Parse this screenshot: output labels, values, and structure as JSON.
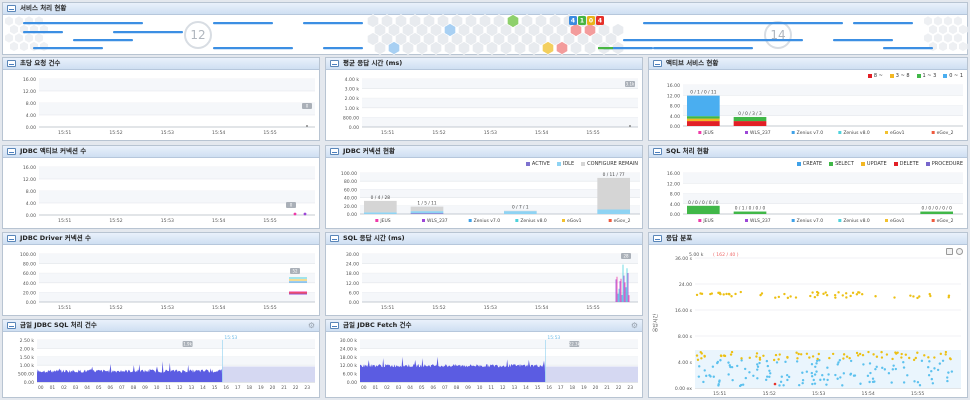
{
  "service": {
    "title": "서비스 처리 현황",
    "count_left": "12",
    "count_right": "14",
    "badges": [
      {
        "label": "4",
        "color": "#3b8be0"
      },
      {
        "label": "1",
        "color": "#47b541"
      },
      {
        "label": "0",
        "color": "#e9b318"
      },
      {
        "label": "4",
        "color": "#e63029"
      }
    ]
  },
  "times": [
    "15:51",
    "15:52",
    "15:53",
    "15:54",
    "15:55"
  ],
  "hours": [
    "00",
    "01",
    "02",
    "03",
    "04",
    "05",
    "06",
    "07",
    "08",
    "09",
    "10",
    "11",
    "12",
    "13",
    "14",
    "15",
    "16",
    "17",
    "18",
    "19",
    "20",
    "21",
    "22",
    "23"
  ],
  "agents": [
    {
      "name": "JEUS",
      "color": "#ef3aa8"
    },
    {
      "name": "WLS_237",
      "color": "#9c47d7"
    },
    {
      "name": "Zenius v7.0",
      "color": "#3fa1e8"
    },
    {
      "name": "Zenius v8.0",
      "color": "#4dd2dc"
    },
    {
      "name": "eGov1",
      "color": "#f2c12e"
    },
    {
      "name": "eGov_2",
      "color": "#ef5a3e"
    }
  ],
  "p1": {
    "title": "초당 요청 건수",
    "yticks": [
      "16.00",
      "12.00",
      "8.00",
      "4.00",
      "0.00"
    ],
    "tip": "0"
  },
  "p2": {
    "title": "평균 응답 시간 (ms)",
    "yticks": [
      "4.00 k",
      "3.00 k",
      "2.00 k",
      "1.00 k",
      "800.00",
      "0.00"
    ],
    "tip": "3.1k"
  },
  "p3": {
    "title": "액티브 서비스 현황",
    "yticks": [
      "16.00",
      "12.00",
      "8.00",
      "4.00",
      "0.00"
    ],
    "legend": [
      {
        "label": "8 ~",
        "color": "#e21f26"
      },
      {
        "label": "3 ~ 8",
        "color": "#f3b722"
      },
      {
        "label": "1 ~ 3",
        "color": "#40b748"
      },
      {
        "label": "0 ~ 1",
        "color": "#4aaef0"
      }
    ],
    "bar_labels": [
      "0 / 1 / 0 / 11",
      "0 / 0 / 3 / 3"
    ]
  },
  "p4": {
    "title": "JDBC 액티브 커넥션 수",
    "yticks": [
      "16.00",
      "12.00",
      "8.00",
      "4.00",
      "0.00"
    ],
    "tip": "0"
  },
  "p5": {
    "title": "JDBC 커넥션 현황",
    "yticks": [
      "100.00",
      "80.00",
      "60.00",
      "40.00",
      "20.00",
      "0.00"
    ],
    "legend": [
      {
        "label": "ACTIVE",
        "color": "#7e72cf"
      },
      {
        "label": "IDLE",
        "color": "#8ed3f3"
      },
      {
        "label": "CONFIGURE REMAIN",
        "color": "#d5d5d5"
      }
    ],
    "bar_labels": [
      "0 / 4 / 28",
      "1 / 5 / 11",
      "0 / 7 / 1",
      "0 / 11 / 77"
    ]
  },
  "p6": {
    "title": "SQL 처리 현황",
    "yticks": [
      "16.00",
      "12.00",
      "8.00",
      "4.00",
      "0.00"
    ],
    "legend": [
      {
        "label": "CREATE",
        "color": "#3fa1e8"
      },
      {
        "label": "SELECT",
        "color": "#40b748"
      },
      {
        "label": "UPDATE",
        "color": "#f3b722"
      },
      {
        "label": "DELETE",
        "color": "#e21f26"
      },
      {
        "label": "PROCEDURE",
        "color": "#7766cc"
      }
    ],
    "bar_labels": [
      "0 / 0 / 0 / 0 / 0",
      "0 / 1 / 0 / 0 / 0",
      "0 / 0 / 0 / 0 / 0"
    ]
  },
  "p7": {
    "title": "JDBC Driver 커넥션 수",
    "yticks": [
      "100.00",
      "80.00",
      "60.00",
      "40.00",
      "20.00",
      "0.00"
    ],
    "tip": "52"
  },
  "p8": {
    "title": "SQL 응답 시간 (ms)",
    "yticks": [
      "30.00",
      "24.00",
      "18.00",
      "12.00",
      "6.00",
      "0.00"
    ],
    "tip": "28"
  },
  "p9": {
    "title": "응답 분포",
    "top": "5.00 k",
    "counts": "( 162 / 40 )",
    "yticks": [
      "36.00 s",
      "24.00",
      "16.00 s",
      "8.00 s",
      "4.00 s",
      "0.00 ex"
    ],
    "ylabel": "응답시간"
  },
  "p10": {
    "title": "금일 JDBC SQL 처리 건수",
    "yticks": [
      "2.50 k",
      "2.00 k",
      "1.50 k",
      "1.00 k",
      "500.00",
      "0.00"
    ],
    "now": "15:53",
    "tip": "1.9k"
  },
  "p11": {
    "title": "금일 JDBC Fetch 건수",
    "yticks": [
      "30.00 k",
      "24.00 k",
      "18.00 k",
      "12.00 k",
      "6.00 k",
      "0.00"
    ],
    "now": "15:53",
    "tip": "22.3k"
  }
}
